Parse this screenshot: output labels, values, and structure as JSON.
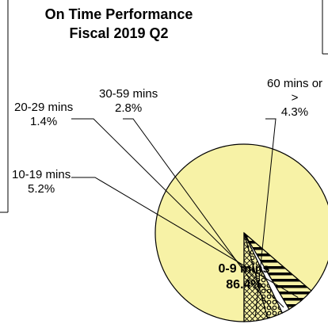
{
  "chart_data": {
    "type": "pie",
    "title": [
      "On Time Performance",
      "Fiscal 2019 Q2"
    ],
    "unit": "%",
    "slices": [
      {
        "label": "0-9 mins",
        "label_lines": [
          "0-9 mins"
        ],
        "value": 86.4,
        "display": "86.4%",
        "color": "#f7f2a6",
        "pattern": "solid"
      },
      {
        "label": "10-19 mins",
        "label_lines": [
          "10-19 mins"
        ],
        "value": 5.2,
        "display": "5.2%",
        "color": "#f7f2a6",
        "pattern": "horizontal-stripes"
      },
      {
        "label": "20-29 mins",
        "label_lines": [
          "20-29 mins"
        ],
        "value": 1.4,
        "display": "1.4%",
        "color": "#ffffff",
        "pattern": "solid"
      },
      {
        "label": "30-59 mins",
        "label_lines": [
          "30-59 mins"
        ],
        "value": 2.8,
        "display": "2.8%",
        "color": "#f7f2a6",
        "pattern": "circles"
      },
      {
        "label": "60 mins or >",
        "label_lines": [
          "60 mins or",
          ">"
        ],
        "value": 4.3,
        "display": "4.3%",
        "color": "#f7f2a6",
        "pattern": "crosshatch"
      }
    ],
    "legend": "none"
  }
}
